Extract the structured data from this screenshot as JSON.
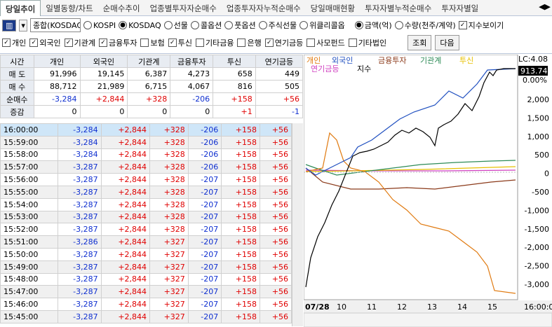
{
  "tabs": [
    "당일추이",
    "일별동향/차트",
    "순매수추이",
    "업종별투자자순매수",
    "업종투자자누적순매수",
    "당일매매현황",
    "투자자별누적순매수",
    "투자자별일"
  ],
  "toolbar": {
    "code": "종합(KOSDAQ",
    "markets": [
      {
        "label": "KOSPI",
        "checked": false
      },
      {
        "label": "KOSDAQ",
        "checked": true
      },
      {
        "label": "선물",
        "checked": false
      },
      {
        "label": "콜옵션",
        "checked": false
      },
      {
        "label": "풋옵션",
        "checked": false
      },
      {
        "label": "주식선물",
        "checked": false
      },
      {
        "label": "위클리콜옵",
        "checked": false
      }
    ],
    "units": [
      {
        "label": "금액(억)",
        "checked": true
      },
      {
        "label": "수량(천주/계약)",
        "checked": false
      }
    ],
    "show_index": {
      "label": "지수보이기",
      "checked": true
    }
  },
  "filters": [
    {
      "label": "개인",
      "checked": true
    },
    {
      "label": "외국인",
      "checked": true
    },
    {
      "label": "기관계",
      "checked": true
    },
    {
      "label": "금융투자",
      "checked": true
    },
    {
      "label": "보험",
      "checked": false
    },
    {
      "label": "투신",
      "checked": true
    },
    {
      "label": "기타금융",
      "checked": false
    },
    {
      "label": "은행",
      "checked": false
    },
    {
      "label": "연기금등",
      "checked": true
    },
    {
      "label": "사모펀드",
      "checked": false
    },
    {
      "label": "기타법인",
      "checked": false
    }
  ],
  "buttons": [
    "조회",
    "다음"
  ],
  "summary": {
    "columns": [
      "시간",
      "개인",
      "외국인",
      "기관계",
      "금융투자",
      "투신",
      "연기금등"
    ],
    "rows": [
      [
        "매 도",
        "91,996",
        "19,145",
        "6,387",
        "4,273",
        "658",
        "449"
      ],
      [
        "매 수",
        "88,712",
        "21,989",
        "6,715",
        "4,067",
        "816",
        "505"
      ],
      [
        "순매수",
        "-3,284",
        "+2,844",
        "+328",
        "-206",
        "+158",
        "+56"
      ],
      [
        "증감",
        "0",
        "0",
        "0",
        "0",
        "+1",
        "-1"
      ]
    ]
  },
  "timeline": {
    "rows": [
      [
        "16:00:00",
        "-3,284",
        "+2,844",
        "+328",
        "-206",
        "+158",
        "+56"
      ],
      [
        "15:59:00",
        "-3,284",
        "+2,844",
        "+328",
        "-206",
        "+158",
        "+56"
      ],
      [
        "15:58:00",
        "-3,284",
        "+2,844",
        "+328",
        "-206",
        "+158",
        "+56"
      ],
      [
        "15:57:00",
        "-3,287",
        "+2,844",
        "+328",
        "-206",
        "+158",
        "+56"
      ],
      [
        "15:56:00",
        "-3,287",
        "+2,844",
        "+328",
        "-207",
        "+158",
        "+56"
      ],
      [
        "15:55:00",
        "-3,287",
        "+2,844",
        "+328",
        "-207",
        "+158",
        "+56"
      ],
      [
        "15:54:00",
        "-3,287",
        "+2,844",
        "+328",
        "-207",
        "+158",
        "+56"
      ],
      [
        "15:53:00",
        "-3,287",
        "+2,844",
        "+328",
        "-207",
        "+158",
        "+56"
      ],
      [
        "15:52:00",
        "-3,287",
        "+2,844",
        "+328",
        "-207",
        "+158",
        "+56"
      ],
      [
        "15:51:00",
        "-3,286",
        "+2,844",
        "+327",
        "-207",
        "+158",
        "+56"
      ],
      [
        "15:50:00",
        "-3,287",
        "+2,844",
        "+327",
        "-207",
        "+158",
        "+56"
      ],
      [
        "15:49:00",
        "-3,287",
        "+2,844",
        "+327",
        "-207",
        "+158",
        "+56"
      ],
      [
        "15:48:00",
        "-3,287",
        "+2,844",
        "+327",
        "-207",
        "+158",
        "+56"
      ],
      [
        "15:47:00",
        "-3,287",
        "+2,844",
        "+327",
        "-207",
        "+158",
        "+56"
      ],
      [
        "15:46:00",
        "-3,287",
        "+2,844",
        "+327",
        "-207",
        "+158",
        "+56"
      ],
      [
        "15:45:00",
        "-3,287",
        "+2,844",
        "+327",
        "-207",
        "+158",
        "+56"
      ]
    ]
  },
  "chart": {
    "legend": [
      {
        "name": "개인",
        "color": "#e07a10"
      },
      {
        "name": "외국인",
        "color": "#2050c0"
      },
      {
        "name": "금융투자",
        "color": "#8b3a1a"
      },
      {
        "name": "기관계",
        "color": "#2e8b57"
      },
      {
        "name": "투신",
        "color": "#e6c000"
      },
      {
        "name": "연기금등",
        "color": "#d040c0"
      },
      {
        "name": "지수",
        "color": "#000000"
      }
    ],
    "lc": "LC:4.08",
    "index_value": "913.74",
    "index_change": "0.00%",
    "y_labels": [
      "2,000",
      "1,500",
      "1,000",
      "500",
      "0",
      "-500",
      "-1,000",
      "-1,500",
      "-2,000",
      "-2,500",
      "-3,000"
    ],
    "x_labels": [
      "07/28",
      "10",
      "11",
      "12",
      "13",
      "14",
      "15",
      "16:00:0"
    ]
  }
}
